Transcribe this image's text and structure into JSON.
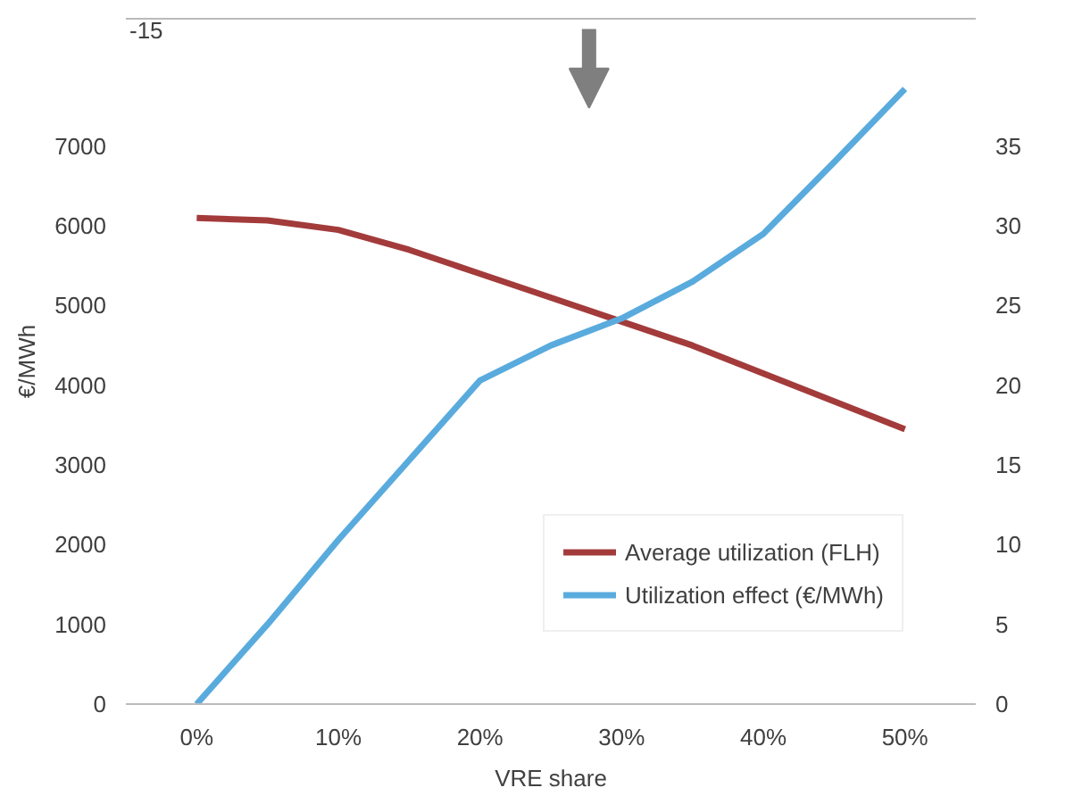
{
  "chart_data": {
    "type": "line",
    "xlabel": "VRE share",
    "ylabel": "€/MWh",
    "x": [
      0,
      5,
      10,
      15,
      20,
      25,
      30,
      35,
      40,
      45,
      50
    ],
    "xlim": [
      -5,
      55
    ],
    "xticks": [
      {
        "value": 0,
        "label": "0%"
      },
      {
        "value": 10,
        "label": "10%"
      },
      {
        "value": 20,
        "label": "20%"
      },
      {
        "value": 30,
        "label": "30%"
      },
      {
        "value": 40,
        "label": "40%"
      },
      {
        "value": 50,
        "label": "50%"
      }
    ],
    "ylim": [
      0,
      8600
    ],
    "yticks": [
      0,
      1000,
      2000,
      3000,
      4000,
      5000,
      6000,
      7000
    ],
    "y2lim": [
      0,
      43
    ],
    "y2ticks": [
      0,
      5,
      10,
      15,
      20,
      25,
      30,
      35
    ],
    "series": [
      {
        "name": "Average utilization (FLH)",
        "color": "#a33b3b",
        "values": [
          6100,
          6070,
          5950,
          5700,
          5400,
          5100,
          4800,
          4500,
          4150,
          3800,
          3450
        ]
      },
      {
        "name": "Utilization effect (€/MWh)",
        "color": "#5aabdd",
        "axis": "y2",
        "values": [
          0,
          5,
          10.3,
          15.3,
          20.3,
          22.5,
          24.2,
          26.5,
          29.5,
          34,
          38.6
        ]
      }
    ],
    "annotations": [
      "-15"
    ],
    "legend": "bottom right",
    "grid": false
  }
}
